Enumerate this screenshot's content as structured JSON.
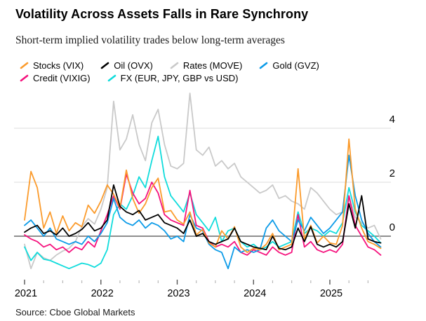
{
  "header": {
    "title": "Volatility Across Assets Falls in Rare Synchrony",
    "subtitle": "Short-term implied volatility trades below long-term averages"
  },
  "source": "Source: Cboe Global Markets",
  "colors": {
    "stocks": "#FB9B2C",
    "oil": "#000000",
    "rates": "#C9C9C9",
    "gold": "#0C9BE8",
    "credit": "#F5117D",
    "fx": "#10DCDC",
    "zero_line": "#8F8F8F",
    "grid_line": "#DCDCDC",
    "major_tick": "#555555",
    "minor_tick": "#B9B9B9"
  },
  "chart_data": {
    "type": "line",
    "title": "Volatility Across Assets Falls in Rare Synchrony",
    "subtitle": "Short-term implied volatility trades below long-term averages",
    "x_unit": "month",
    "xlabel": "",
    "ylabel": "",
    "y_axis": {
      "side": "right",
      "ticks": [
        0,
        2,
        4
      ],
      "ylim": [
        -1.5,
        5.5
      ],
      "zero_line": true
    },
    "x_axis": {
      "major_tick_labels": [
        "2021",
        "2022",
        "2023",
        "2024",
        "2025"
      ],
      "minor_ticks": "quarterly",
      "xlim_years": [
        2021.0,
        2025.75
      ]
    },
    "grid": "horizontal-only",
    "legend_position": "top",
    "legend_rows": [
      [
        0,
        1,
        2,
        3
      ],
      [
        4,
        5
      ]
    ],
    "x": [
      "2021-01",
      "2021-02",
      "2021-03",
      "2021-04",
      "2021-05",
      "2021-06",
      "2021-07",
      "2021-08",
      "2021-09",
      "2021-10",
      "2021-11",
      "2021-12",
      "2022-01",
      "2022-02",
      "2022-03",
      "2022-04",
      "2022-05",
      "2022-06",
      "2022-07",
      "2022-08",
      "2022-09",
      "2022-10",
      "2022-11",
      "2022-12",
      "2023-01",
      "2023-02",
      "2023-03",
      "2023-04",
      "2023-05",
      "2023-06",
      "2023-07",
      "2023-08",
      "2023-09",
      "2023-10",
      "2023-11",
      "2023-12",
      "2024-01",
      "2024-02",
      "2024-03",
      "2024-04",
      "2024-05",
      "2024-06",
      "2024-07",
      "2024-08",
      "2024-09",
      "2024-10",
      "2024-11",
      "2024-12",
      "2025-01",
      "2025-02",
      "2025-03",
      "2025-04",
      "2025-05",
      "2025-06",
      "2025-07",
      "2025-08",
      "2025-09"
    ],
    "series": [
      {
        "name": "Stocks (VIX)",
        "color_key": "stocks",
        "values": [
          0.6,
          2.4,
          1.8,
          0.3,
          0.9,
          0.1,
          0.75,
          0.2,
          0.5,
          0.35,
          1.15,
          0.85,
          1.3,
          1.9,
          1.55,
          1.05,
          2.45,
          1.4,
          0.85,
          1.2,
          1.8,
          2.15,
          0.9,
          0.95,
          0.6,
          0.45,
          0.9,
          0.05,
          0.25,
          -0.25,
          -0.4,
          0.2,
          -0.1,
          0.35,
          -0.4,
          -0.6,
          -0.45,
          -0.5,
          -0.3,
          0.1,
          -0.5,
          -0.4,
          -0.3,
          2.5,
          -0.1,
          0.4,
          -0.25,
          0.0,
          -0.25,
          -0.3,
          0.4,
          3.6,
          1.0,
          0.3,
          -0.2,
          -0.3,
          -0.45
        ]
      },
      {
        "name": "Oil (OVX)",
        "color_key": "oil",
        "values": [
          0.15,
          0.3,
          0.4,
          0.1,
          0.2,
          0.05,
          0.3,
          0.0,
          0.1,
          0.25,
          0.5,
          0.2,
          0.3,
          0.6,
          1.9,
          1.1,
          0.9,
          0.8,
          0.95,
          0.6,
          0.7,
          0.8,
          0.5,
          0.4,
          0.3,
          0.1,
          0.6,
          0.0,
          0.1,
          -0.2,
          -0.3,
          -0.2,
          -0.1,
          0.3,
          -0.2,
          -0.3,
          -0.4,
          -0.45,
          -0.5,
          0.0,
          -0.45,
          -0.5,
          -0.4,
          0.3,
          -0.2,
          0.35,
          -0.3,
          -0.4,
          -0.3,
          -0.4,
          -0.2,
          1.2,
          0.3,
          1.5,
          -0.1,
          -0.2,
          -0.25
        ]
      },
      {
        "name": "Rates (MOVE)",
        "color_key": "rates",
        "values": [
          -0.3,
          -1.2,
          -0.6,
          -0.8,
          -0.9,
          -0.7,
          -0.55,
          -0.45,
          -0.2,
          0.35,
          0.65,
          0.45,
          1.0,
          1.8,
          5.0,
          3.2,
          3.6,
          4.5,
          3.4,
          2.8,
          4.2,
          4.7,
          3.4,
          2.6,
          2.5,
          2.7,
          5.3,
          3.2,
          3.0,
          3.3,
          2.6,
          2.8,
          2.5,
          2.7,
          2.2,
          2.0,
          1.8,
          1.6,
          1.7,
          1.9,
          1.4,
          1.5,
          1.3,
          1.2,
          1.0,
          1.8,
          1.6,
          1.3,
          1.0,
          0.8,
          0.9,
          1.5,
          0.7,
          0.5,
          0.3,
          0.4,
          -0.1
        ]
      },
      {
        "name": "Gold (GVZ)",
        "color_key": "gold",
        "values": [
          0.4,
          0.6,
          0.3,
          0.0,
          0.3,
          -0.1,
          -0.2,
          -0.3,
          -0.2,
          -0.3,
          0.0,
          -0.2,
          0.1,
          0.5,
          1.4,
          0.7,
          0.5,
          0.4,
          0.6,
          0.3,
          0.5,
          0.4,
          0.2,
          -0.1,
          0.0,
          -0.2,
          0.8,
          0.3,
          0.2,
          -0.3,
          -0.5,
          -0.6,
          -1.2,
          -0.4,
          -0.6,
          -0.5,
          -0.6,
          -0.5,
          0.3,
          0.6,
          0.2,
          0.0,
          -0.2,
          0.6,
          0.2,
          0.7,
          0.4,
          0.1,
          0.3,
          0.6,
          0.9,
          3.0,
          1.5,
          0.6,
          0.1,
          -0.2,
          -0.4
        ]
      },
      {
        "name": "Credit (VIXIG)",
        "color_key": "credit",
        "values": [
          0.05,
          -0.1,
          -0.2,
          -0.4,
          -0.3,
          -0.5,
          -0.4,
          -0.6,
          -0.4,
          -0.5,
          -0.2,
          -0.4,
          0.2,
          0.8,
          1.5,
          1.0,
          2.3,
          1.6,
          1.2,
          1.4,
          2.0,
          1.6,
          0.8,
          0.6,
          0.5,
          0.4,
          1.7,
          0.4,
          0.3,
          -0.2,
          -0.4,
          -0.3,
          -0.4,
          -0.2,
          -0.6,
          -0.7,
          -0.5,
          -0.6,
          -0.7,
          -0.4,
          -0.6,
          -0.7,
          -0.6,
          0.8,
          -0.4,
          -0.2,
          -0.5,
          -0.6,
          -0.5,
          -0.6,
          -0.3,
          1.5,
          0.4,
          0.0,
          -0.4,
          -0.5,
          -0.7
        ]
      },
      {
        "name": "FX (EUR, JPY, GBP vs USD)",
        "color_key": "fx",
        "values": [
          -0.4,
          -0.9,
          -0.6,
          -0.85,
          -0.9,
          -1.0,
          -1.1,
          -1.2,
          -1.1,
          -1.0,
          -1.05,
          -1.15,
          -1.0,
          -0.5,
          0.8,
          1.2,
          1.0,
          1.5,
          2.2,
          1.8,
          2.8,
          3.7,
          2.2,
          1.5,
          1.2,
          0.9,
          1.6,
          0.8,
          0.5,
          0.2,
          0.7,
          -0.2,
          0.2,
          0.3,
          -0.2,
          -0.4,
          -0.3,
          -0.5,
          -0.4,
          -0.2,
          -0.4,
          -0.3,
          -0.2,
          0.9,
          0.1,
          0.3,
          0.2,
          0.0,
          0.2,
          0.1,
          0.5,
          1.8,
          0.9,
          0.4,
          0.2,
          0.0,
          -0.25
        ]
      }
    ],
    "draw_order": [
      2,
      5,
      4,
      3,
      0,
      1
    ]
  }
}
